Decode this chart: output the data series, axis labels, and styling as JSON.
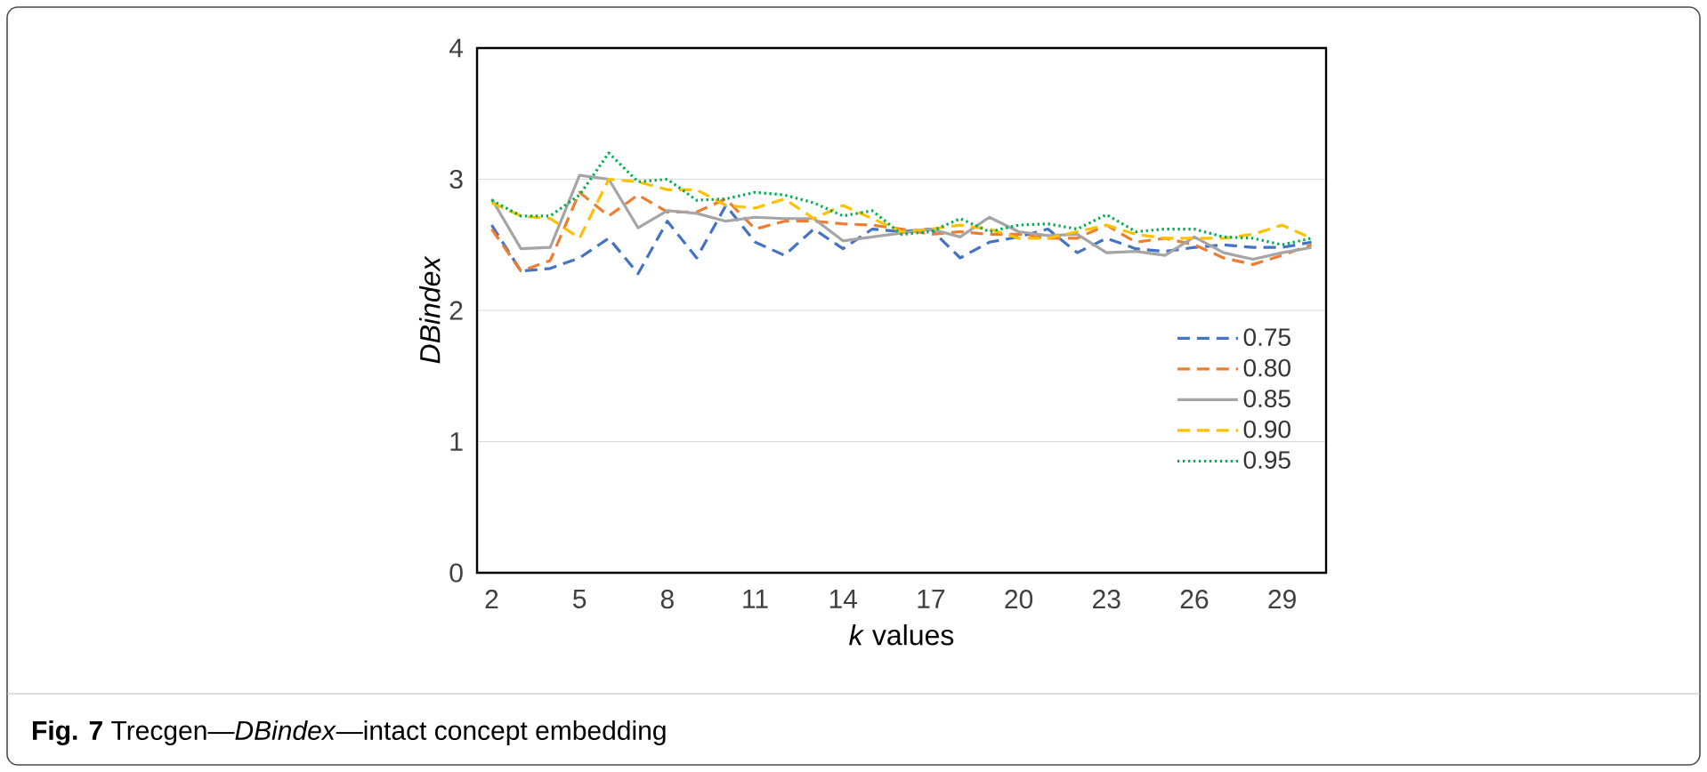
{
  "chart_data": {
    "type": "line",
    "xlabel": "*k* values",
    "ylabel": "DBindex",
    "annotations": [
      "**Fig. 7** Trecgen—*DBindex*—intact concept embedding"
    ],
    "categories": [
      "2",
      null,
      null,
      "5",
      null,
      null,
      "8",
      null,
      null,
      "11",
      null,
      null,
      "14",
      null,
      null,
      "17",
      null,
      null,
      "20",
      null,
      null,
      "23",
      null,
      null,
      "26",
      null,
      null,
      "29",
      null
    ],
    "series": [
      {
        "name": "0.75",
        "color": "#4472c4",
        "line_style": "dashed",
        "values": [
          2.65,
          2.3,
          2.32,
          2.4,
          2.55,
          2.28,
          2.68,
          2.4,
          2.8,
          2.52,
          2.42,
          2.62,
          2.47,
          2.62,
          2.6,
          2.62,
          2.4,
          2.52,
          2.56,
          2.62,
          2.44,
          2.55,
          2.47,
          2.45,
          2.48,
          2.5,
          2.48,
          2.48,
          2.52
        ]
      },
      {
        "name": "0.80",
        "color": "#ed7d31",
        "line_style": "dashed",
        "values": [
          2.62,
          2.3,
          2.38,
          2.9,
          2.72,
          2.88,
          2.75,
          2.75,
          2.85,
          2.62,
          2.68,
          2.68,
          2.66,
          2.65,
          2.62,
          2.58,
          2.6,
          2.58,
          2.58,
          2.55,
          2.55,
          2.65,
          2.52,
          2.55,
          2.5,
          2.4,
          2.35,
          2.42,
          2.5
        ]
      },
      {
        "name": "0.85",
        "color": "#a5a5a5",
        "line_style": "solid",
        "values": [
          2.85,
          2.47,
          2.48,
          3.03,
          3.0,
          2.63,
          2.76,
          2.74,
          2.68,
          2.71,
          2.7,
          2.7,
          2.53,
          2.56,
          2.59,
          2.62,
          2.56,
          2.71,
          2.6,
          2.57,
          2.58,
          2.44,
          2.45,
          2.42,
          2.56,
          2.44,
          2.39,
          2.44,
          2.48
        ]
      },
      {
        "name": "0.90",
        "color": "#ffc000",
        "line_style": "dashed",
        "values": [
          2.82,
          2.72,
          2.7,
          2.55,
          3.0,
          2.98,
          2.92,
          2.92,
          2.8,
          2.78,
          2.85,
          2.7,
          2.8,
          2.7,
          2.6,
          2.62,
          2.65,
          2.62,
          2.55,
          2.55,
          2.6,
          2.65,
          2.58,
          2.55,
          2.55,
          2.55,
          2.58,
          2.65,
          2.55
        ]
      },
      {
        "name": "0.95",
        "color": "#00b050",
        "line_style": "dotted",
        "values": [
          2.84,
          2.72,
          2.72,
          2.88,
          3.2,
          2.98,
          3.0,
          2.84,
          2.85,
          2.9,
          2.88,
          2.82,
          2.72,
          2.76,
          2.58,
          2.6,
          2.7,
          2.6,
          2.65,
          2.66,
          2.62,
          2.73,
          2.6,
          2.62,
          2.62,
          2.56,
          2.55,
          2.5,
          2.55
        ]
      }
    ],
    "ylim": [
      0,
      4
    ],
    "yticks": [
      0,
      1,
      2,
      3,
      4
    ],
    "grid": "y",
    "legend": "right",
    "marker": "none"
  }
}
